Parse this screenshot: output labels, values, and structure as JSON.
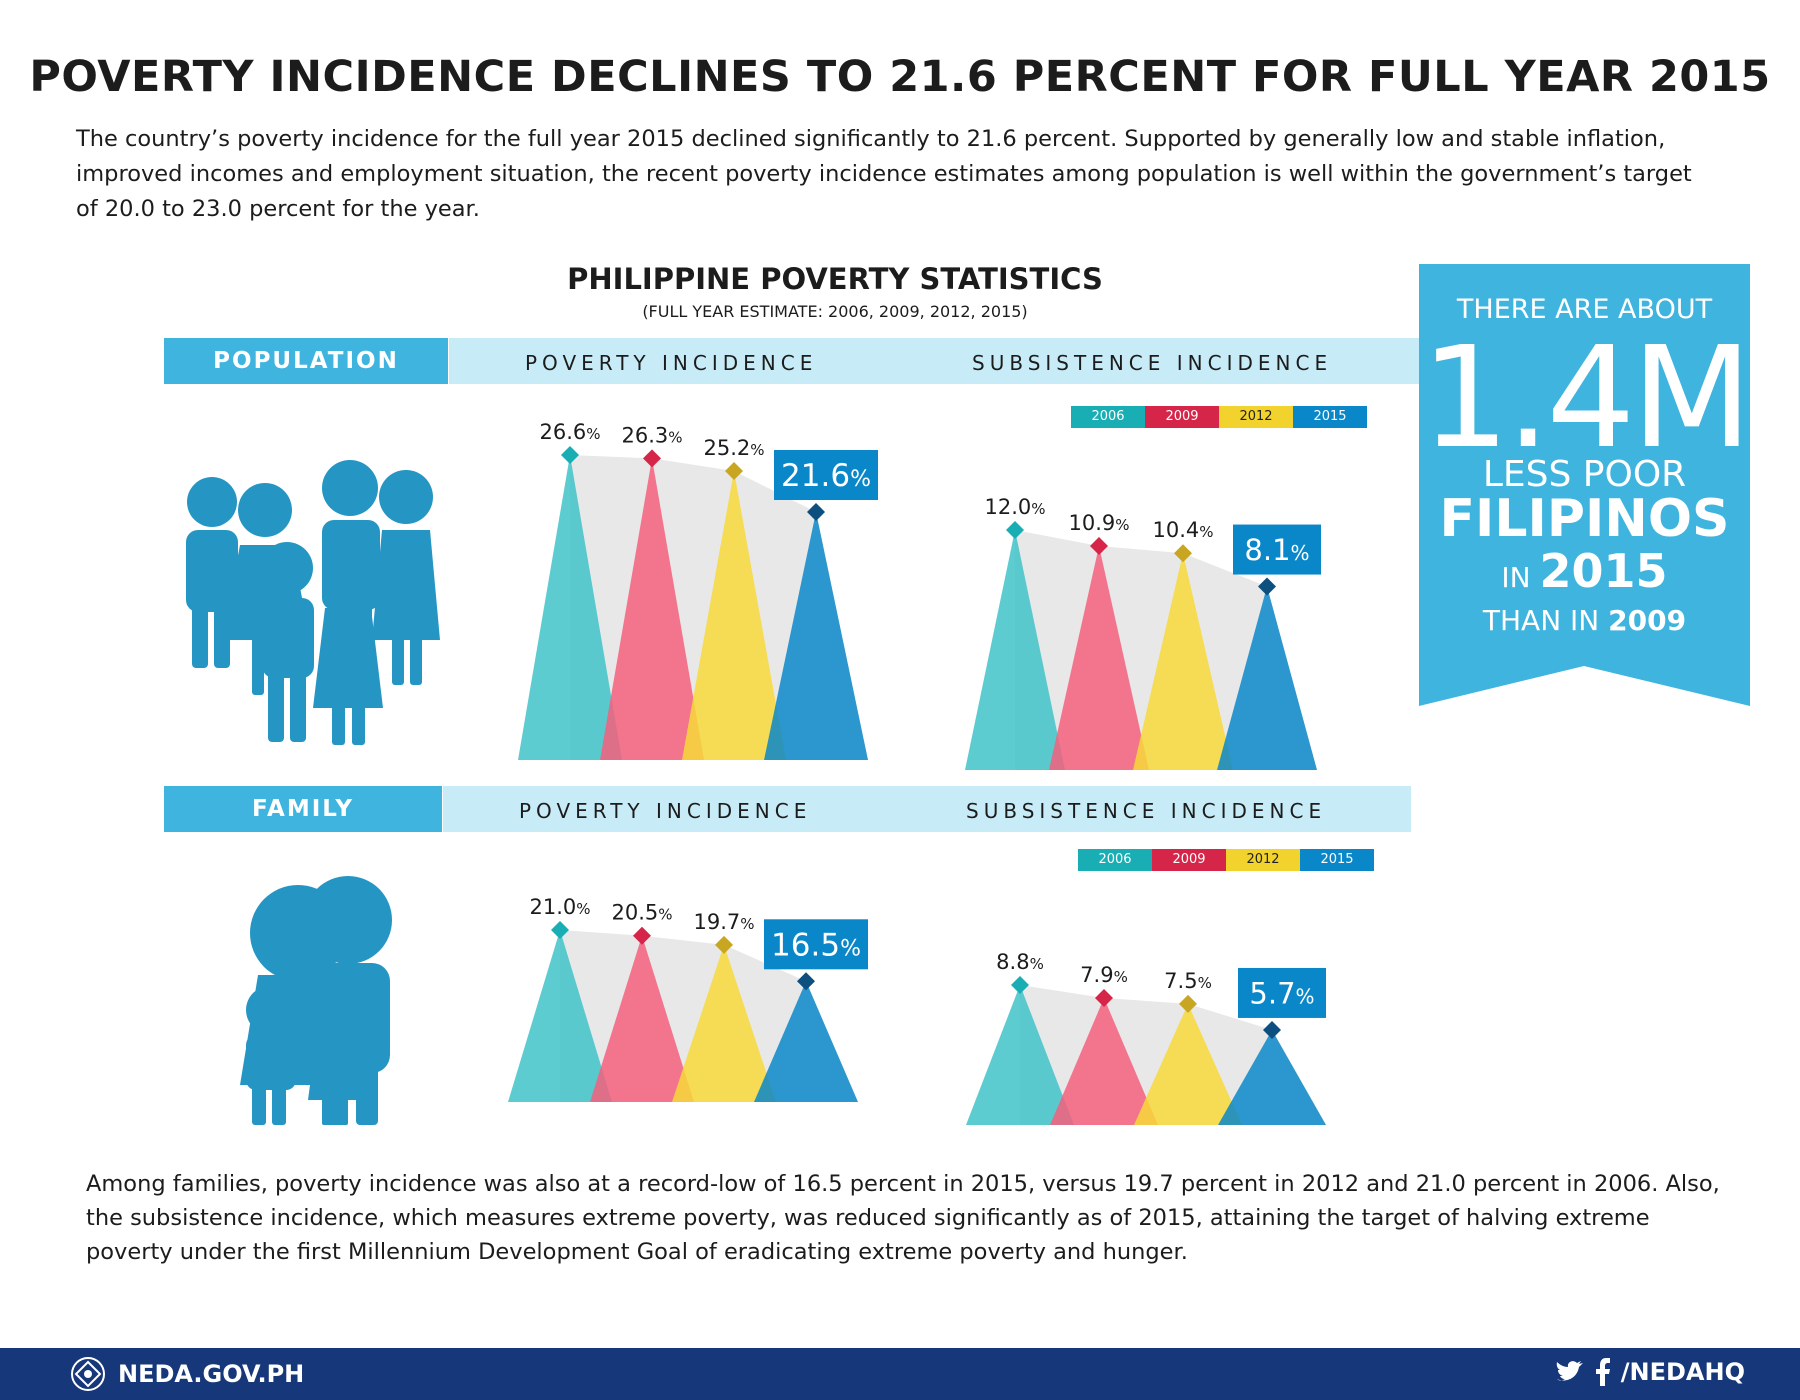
{
  "title": "POVERTY INCIDENCE DECLINES TO 21.6 PERCENT FOR FULL YEAR 2015",
  "intro": "The country’s poverty incidence for the full year 2015 declined significantly to 21.6 percent. Supported by generally low and stable inflation, improved incomes and employment situation, the recent poverty incidence estimates among population is well within the government’s target of 20.0 to 23.0 percent for the year.",
  "stats_title": "PHILIPPINE POVERTY STATISTICS",
  "stats_subtitle": "(FULL YEAR ESTIMATE: 2006, 2009, 2012, 2015)",
  "sections": {
    "population": {
      "label": "POPULATION",
      "poverty_header": "POVERTY INCIDENCE",
      "subsistence_header": "SUBSISTENCE INCIDENCE"
    },
    "family": {
      "label": "FAMILY",
      "poverty_header": "POVERTY INCIDENCE",
      "subsistence_header": "SUBSISTENCE INCIDENCE"
    }
  },
  "legend": [
    "2006",
    "2009",
    "2012",
    "2015"
  ],
  "colors": {
    "2006": "#3fc3c9",
    "2009": "#f45f7d",
    "2012": "#f7d939",
    "2015": "#0a87c9",
    "marker_2006": "#18aeb4",
    "marker_2009": "#d5264a",
    "marker_2012": "#c9a622",
    "marker_2015": "#0d4f7e",
    "accent": "#3fb4df",
    "band_light": "#c7ecf7",
    "footer": "#16377a"
  },
  "callout": {
    "line1": "THERE ARE ABOUT",
    "big": "1.4M",
    "less": "LESS POOR",
    "filipinos": "FILIPINOS",
    "in": "IN",
    "in_year": "2015",
    "than": "THAN IN",
    "than_year": "2009"
  },
  "chart_data": [
    {
      "type": "area",
      "title": "POVERTY INCIDENCE",
      "group": "POPULATION",
      "categories": [
        "2006",
        "2009",
        "2012",
        "2015"
      ],
      "values": [
        26.6,
        26.3,
        25.2,
        21.6
      ],
      "unit": "%"
    },
    {
      "type": "area",
      "title": "SUBSISTENCE INCIDENCE",
      "group": "POPULATION",
      "categories": [
        "2006",
        "2009",
        "2012",
        "2015"
      ],
      "values": [
        12.0,
        10.9,
        10.4,
        8.1
      ],
      "unit": "%"
    },
    {
      "type": "area",
      "title": "POVERTY INCIDENCE",
      "group": "FAMILY",
      "categories": [
        "2006",
        "2009",
        "2012",
        "2015"
      ],
      "values": [
        21.0,
        20.5,
        19.7,
        16.5
      ],
      "unit": "%"
    },
    {
      "type": "area",
      "title": "SUBSISTENCE INCIDENCE",
      "group": "FAMILY",
      "categories": [
        "2006",
        "2009",
        "2012",
        "2015"
      ],
      "values": [
        8.8,
        7.9,
        7.5,
        5.7
      ],
      "unit": "%"
    }
  ],
  "outro": "Among families, poverty incidence was also at a record-low of 16.5 percent in 2015, versus 19.7 percent in 2012 and 21.0 percent in 2006. Also, the subsistence incidence, which measures extreme poverty, was reduced significantly as of 2015, attaining the target of halving extreme poverty under the first Millennium Development Goal of eradicating extreme poverty and hunger.",
  "footer": {
    "site": "NEDA.GOV.PH",
    "handle": "/NEDAHQ"
  }
}
